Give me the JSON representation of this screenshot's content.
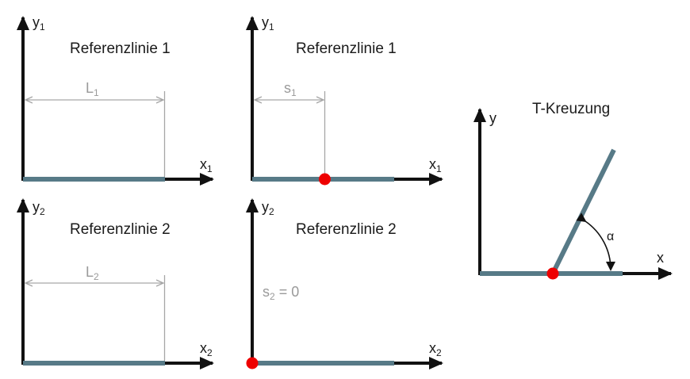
{
  "colors": {
    "axis": "#111111",
    "reference_line": "#577a87",
    "dimension": "#a6a6a6",
    "point": "#ee0000",
    "title": "#1a1a1a"
  },
  "panels": [
    {
      "id": "top-left",
      "title": "Referenzlinie 1",
      "y_axis_label": "y",
      "y_axis_sub": "1",
      "x_axis_label": "x",
      "x_axis_sub": "1",
      "dimension_label": "L",
      "dimension_sub": "1"
    },
    {
      "id": "top-middle",
      "title": "Referenzlinie 1",
      "y_axis_label": "y",
      "y_axis_sub": "1",
      "x_axis_label": "x",
      "x_axis_sub": "1",
      "dimension_label": "s",
      "dimension_sub": "1"
    },
    {
      "id": "bottom-left",
      "title": "Referenzlinie 2",
      "y_axis_label": "y",
      "y_axis_sub": "2",
      "x_axis_label": "x",
      "x_axis_sub": "2",
      "dimension_label": "L",
      "dimension_sub": "2"
    },
    {
      "id": "bottom-middle",
      "title": "Referenzlinie 2",
      "y_axis_label": "y",
      "y_axis_sub": "2",
      "x_axis_label": "x",
      "x_axis_sub": "2",
      "dimension_label": "s",
      "dimension_sub": "2",
      "dimension_value": " = 0"
    },
    {
      "id": "right",
      "title": "T-Kreuzung",
      "y_axis_label": "y",
      "x_axis_label": "x",
      "angle_label": "α"
    }
  ]
}
